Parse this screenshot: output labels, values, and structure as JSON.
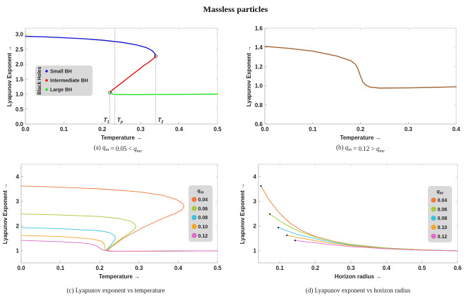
{
  "title": "Massless particles",
  "chart_data": [
    {
      "id": "a",
      "type": "line",
      "caption": "(a)  q_m = 0.05 < q_mc",
      "xlabel": "Temperature →",
      "ylabel": "Lyapunov Exponent →",
      "xlim": [
        0,
        0.5
      ],
      "ylim": [
        0,
        3.2
      ],
      "xticks": [
        "0.0",
        "0.1",
        "0.2",
        "0.3",
        "0.4",
        "0.5"
      ],
      "xtick_values": [
        0,
        0.1,
        0.2,
        0.3,
        0.4,
        0.5
      ],
      "yticks": [
        "0.0",
        "0.5",
        "1.0",
        "1.5",
        "2.0",
        "2.5",
        "3.0"
      ],
      "ytick_values": [
        0,
        0.5,
        1.0,
        1.5,
        2.0,
        2.5,
        3.0
      ],
      "legend": {
        "title": "Black Holes",
        "placement": "center-left"
      },
      "series": [
        {
          "name": "Small BH",
          "color": "#1f1fd6",
          "x": [
            0,
            0.05,
            0.1,
            0.15,
            0.2,
            0.25,
            0.29,
            0.315,
            0.33,
            0.337,
            0.339
          ],
          "y": [
            2.93,
            2.91,
            2.88,
            2.85,
            2.8,
            2.73,
            2.64,
            2.55,
            2.45,
            2.35,
            2.27
          ]
        },
        {
          "name": "Intermediate BH",
          "color": "#e01010",
          "x": [
            0.22,
            0.225,
            0.235,
            0.25,
            0.27,
            0.29,
            0.31,
            0.325,
            0.335,
            0.339
          ],
          "y": [
            1.05,
            1.12,
            1.22,
            1.37,
            1.57,
            1.77,
            1.97,
            2.1,
            2.2,
            2.27
          ]
        },
        {
          "name": "Large BH",
          "color": "#22e022",
          "x": [
            0.22,
            0.23,
            0.25,
            0.3,
            0.35,
            0.4,
            0.45,
            0.5
          ],
          "y": [
            1.05,
            0.99,
            0.98,
            0.98,
            0.985,
            0.99,
            0.995,
            1.0
          ]
        }
      ],
      "markers": [
        {
          "label": "T_1",
          "x": 0.22,
          "y": 1.05,
          "circle": true
        },
        {
          "label": "T_p",
          "x": 0.233,
          "y": 2.73,
          "circle": false
        },
        {
          "label": "T_2",
          "x": 0.339,
          "y": 2.27,
          "circle": true
        }
      ]
    },
    {
      "id": "b",
      "type": "line",
      "caption": "(b)  q_m = 0.12 > q_mc",
      "xlabel": "Temperature →",
      "ylabel": "Lyapunov Exponent →",
      "xlim": [
        0,
        0.4
      ],
      "ylim": [
        0.6,
        1.6
      ],
      "xticks": [
        "0.0",
        "0.1",
        "0.2",
        "0.3",
        "0.4"
      ],
      "xtick_values": [
        0,
        0.1,
        0.2,
        0.3,
        0.4
      ],
      "yticks": [
        "0.6",
        "0.8",
        "1.0",
        "1.2",
        "1.4",
        "1.6"
      ],
      "ytick_values": [
        0.6,
        0.8,
        1.0,
        1.2,
        1.4,
        1.6
      ],
      "series": [
        {
          "name": "q_m = 0.12",
          "color": "#a0693a",
          "x": [
            0,
            0.05,
            0.1,
            0.15,
            0.18,
            0.19,
            0.195,
            0.2,
            0.205,
            0.21,
            0.22,
            0.24,
            0.3,
            0.35,
            0.4
          ],
          "y": [
            1.41,
            1.39,
            1.36,
            1.31,
            1.26,
            1.22,
            1.17,
            1.1,
            1.04,
            1.01,
            0.985,
            0.975,
            0.977,
            0.982,
            0.988
          ]
        }
      ]
    },
    {
      "id": "c",
      "type": "line",
      "caption": "(c) Lyapunov exponent vs temperature",
      "xlabel": "Temperature →",
      "ylabel": "Lyapunov Exponent →",
      "xlim": [
        0,
        0.5
      ],
      "ylim": [
        0.5,
        4.5
      ],
      "xticks": [
        "0.0",
        "0.1",
        "0.2",
        "0.3",
        "0.4",
        "0.5"
      ],
      "xtick_values": [
        0,
        0.1,
        0.2,
        0.3,
        0.4,
        0.5
      ],
      "yticks": [
        "1",
        "2",
        "3",
        "4"
      ],
      "ytick_values": [
        1,
        2,
        3,
        4
      ],
      "legend": {
        "title": "q_m",
        "placement": "right"
      },
      "series": [
        {
          "name": "0.04",
          "color": "#f07a3a",
          "x": [
            0,
            0.1,
            0.2,
            0.3,
            0.36,
            0.395,
            0.41,
            0.415,
            0.41,
            0.395,
            0.36,
            0.31,
            0.26,
            0.23,
            0.22,
            0.23,
            0.3,
            0.4,
            0.5
          ],
          "y": [
            3.62,
            3.57,
            3.5,
            3.38,
            3.24,
            3.07,
            2.93,
            2.8,
            2.67,
            2.52,
            2.3,
            1.93,
            1.5,
            1.15,
            1.0,
            0.97,
            0.97,
            0.98,
            0.99
          ]
        },
        {
          "name": "0.06",
          "color": "#a6c93a",
          "x": [
            0,
            0.1,
            0.2,
            0.25,
            0.28,
            0.29,
            0.292,
            0.288,
            0.275,
            0.255,
            0.235,
            0.222,
            0.218,
            0.23,
            0.3,
            0.4,
            0.5
          ],
          "y": [
            2.48,
            2.44,
            2.38,
            2.3,
            2.18,
            2.06,
            1.95,
            1.85,
            1.7,
            1.48,
            1.25,
            1.08,
            1.0,
            0.97,
            0.97,
            0.98,
            0.99
          ]
        },
        {
          "name": "0.08",
          "color": "#3ec2e0",
          "x": [
            0,
            0.1,
            0.2,
            0.225,
            0.238,
            0.24,
            0.236,
            0.228,
            0.22,
            0.216,
            0.23,
            0.3,
            0.4,
            0.5
          ],
          "y": [
            1.93,
            1.89,
            1.8,
            1.73,
            1.6,
            1.48,
            1.38,
            1.22,
            1.08,
            1.0,
            0.97,
            0.97,
            0.98,
            0.99
          ]
        },
        {
          "name": "0.10",
          "color": "#f5a623",
          "x": [
            0,
            0.1,
            0.18,
            0.205,
            0.212,
            0.213,
            0.214,
            0.22,
            0.23,
            0.3,
            0.4,
            0.5
          ],
          "y": [
            1.61,
            1.57,
            1.47,
            1.38,
            1.25,
            1.12,
            1.03,
            0.98,
            0.97,
            0.97,
            0.98,
            0.99
          ]
        },
        {
          "name": "0.12",
          "color": "#e06ac8",
          "x": [
            0,
            0.1,
            0.15,
            0.18,
            0.195,
            0.2,
            0.205,
            0.21,
            0.22,
            0.24,
            0.3,
            0.4,
            0.5
          ],
          "y": [
            1.41,
            1.36,
            1.31,
            1.26,
            1.17,
            1.1,
            1.04,
            1.01,
            0.985,
            0.975,
            0.977,
            0.985,
            0.99
          ]
        }
      ]
    },
    {
      "id": "d",
      "type": "line",
      "caption": "(d) Lyapunov exponent vs horizon radius",
      "xlabel": "Horizon radius →",
      "ylabel": "Lyapunov Exponent →",
      "xlim": [
        0.04,
        0.6
      ],
      "ylim": [
        0.5,
        4.5
      ],
      "xticks": [
        "0.1",
        "0.2",
        "0.3",
        "0.4",
        "0.5",
        "0.6"
      ],
      "xtick_values": [
        0.1,
        0.2,
        0.3,
        0.4,
        0.5,
        0.6
      ],
      "yticks": [
        "1",
        "2",
        "3",
        "4"
      ],
      "ytick_values": [
        1,
        2,
        3,
        4
      ],
      "legend": {
        "title": "q_m",
        "placement": "right"
      },
      "series": [
        {
          "name": "0.04",
          "color": "#f07a3a",
          "x": [
            0.047,
            0.07,
            0.1,
            0.13,
            0.16,
            0.2,
            0.25,
            0.3,
            0.4,
            0.5,
            0.6
          ],
          "y": [
            3.62,
            3.05,
            2.5,
            2.1,
            1.82,
            1.57,
            1.38,
            1.25,
            1.1,
            1.03,
            0.99
          ]
        },
        {
          "name": "0.06",
          "color": "#a6c93a",
          "x": [
            0.072,
            0.1,
            0.13,
            0.16,
            0.2,
            0.25,
            0.3,
            0.4,
            0.5,
            0.6
          ],
          "y": [
            2.48,
            2.2,
            1.95,
            1.75,
            1.55,
            1.37,
            1.24,
            1.1,
            1.03,
            0.99
          ]
        },
        {
          "name": "0.08",
          "color": "#3ec2e0",
          "x": [
            0.096,
            0.12,
            0.15,
            0.2,
            0.25,
            0.3,
            0.4,
            0.5,
            0.6
          ],
          "y": [
            1.93,
            1.8,
            1.65,
            1.48,
            1.33,
            1.22,
            1.09,
            1.02,
            0.99
          ]
        },
        {
          "name": "0.10",
          "color": "#f5a623",
          "x": [
            0.12,
            0.15,
            0.2,
            0.25,
            0.3,
            0.4,
            0.5,
            0.6
          ],
          "y": [
            1.62,
            1.53,
            1.4,
            1.29,
            1.2,
            1.08,
            1.02,
            0.99
          ]
        },
        {
          "name": "0.12",
          "color": "#e06ac8",
          "x": [
            0.143,
            0.17,
            0.2,
            0.25,
            0.3,
            0.4,
            0.5,
            0.6
          ],
          "y": [
            1.41,
            1.36,
            1.31,
            1.23,
            1.16,
            1.07,
            1.01,
            0.99
          ]
        }
      ]
    }
  ]
}
